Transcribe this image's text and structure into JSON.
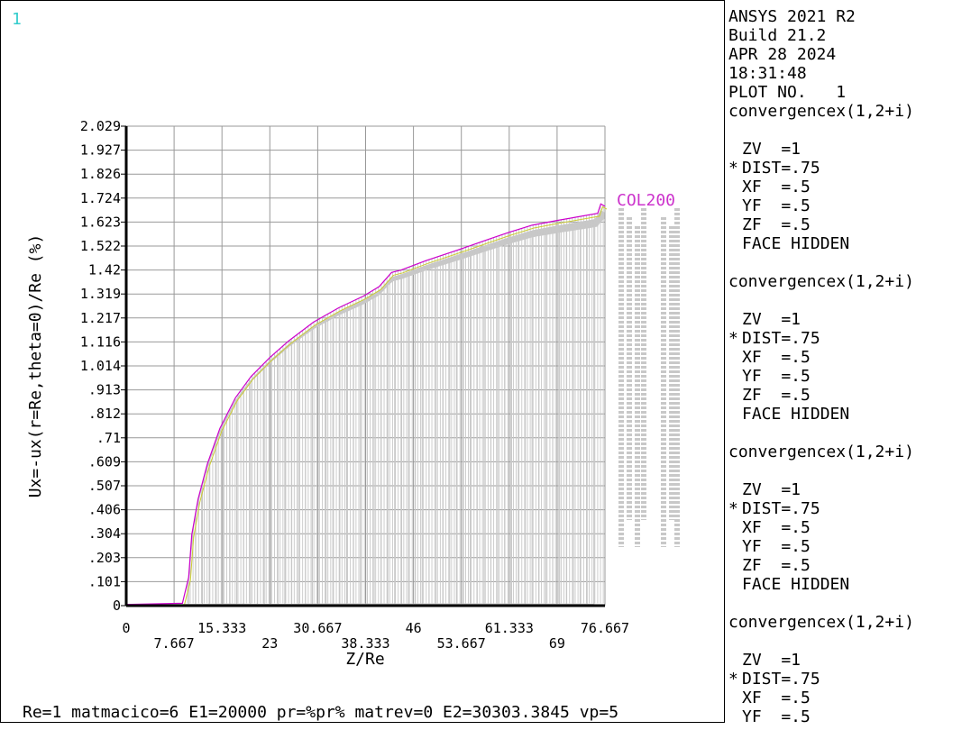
{
  "window_number": "1",
  "footer": "Re=1 matmacico=6 E1=20000 pr=%pr% matrev=0 E2=30303.3845 vp=5",
  "legend": {
    "header": [
      "ANSYS 2021 R2",
      "Build 21.2",
      "APR 28 2024",
      "18:31:48",
      "PLOT NO.   1"
    ],
    "blocks": [
      {
        "title": "convergencex(1,2+i)",
        "lines": [
          {
            "p": " ",
            "t": "ZV  =1"
          },
          {
            "p": "*",
            "t": "DIST=.75"
          },
          {
            "p": " ",
            "t": "XF  =.5"
          },
          {
            "p": " ",
            "t": "YF  =.5"
          },
          {
            "p": " ",
            "t": "ZF  =.5"
          },
          {
            "p": " ",
            "t": "FACE HIDDEN"
          }
        ]
      },
      {
        "title": "convergencex(1,2+i)",
        "lines": [
          {
            "p": " ",
            "t": "ZV  =1"
          },
          {
            "p": "*",
            "t": "DIST=.75"
          },
          {
            "p": " ",
            "t": "XF  =.5"
          },
          {
            "p": " ",
            "t": "YF  =.5"
          },
          {
            "p": " ",
            "t": "ZF  =.5"
          },
          {
            "p": " ",
            "t": "FACE HIDDEN"
          }
        ]
      },
      {
        "title": "convergencex(1,2+i)",
        "lines": [
          {
            "p": " ",
            "t": "ZV  =1"
          },
          {
            "p": "*",
            "t": "DIST=.75"
          },
          {
            "p": " ",
            "t": "XF  =.5"
          },
          {
            "p": " ",
            "t": "YF  =.5"
          },
          {
            "p": " ",
            "t": "ZF  =.5"
          },
          {
            "p": " ",
            "t": "FACE HIDDEN"
          }
        ]
      },
      {
        "title": "convergencex(1,2+i)",
        "lines": [
          {
            "p": " ",
            "t": "ZV  =1"
          },
          {
            "p": "*",
            "t": "DIST=.75"
          },
          {
            "p": " ",
            "t": "XF  =.5"
          },
          {
            "p": " ",
            "t": "YF  =.5"
          }
        ]
      }
    ]
  },
  "chart_data": {
    "type": "line",
    "title": "",
    "xlabel": "Z/Re",
    "ylabel": "Ux=-ux(r=Re,theta=0)/Re (%)",
    "xlim": [
      0,
      76.667
    ],
    "ylim": [
      0,
      2.029
    ],
    "grid": true,
    "x_ticks_row1": [
      "0",
      "15.333",
      "30.667",
      "46",
      "61.333",
      "76.667"
    ],
    "x_ticks_row2": [
      "7.667",
      "23",
      "38.333",
      "53.667",
      "69"
    ],
    "y_ticks": [
      "0",
      ".101",
      ".203",
      ".304",
      ".406",
      ".507",
      ".609",
      ".71",
      ".812",
      ".913",
      "1.014",
      "1.116",
      "1.217",
      "1.319",
      "1.42",
      "1.522",
      "1.623",
      "1.724",
      "1.826",
      "1.927",
      "2.029"
    ],
    "series_label": "COL200",
    "series_count": 200,
    "colors": {
      "envelope": "#cc00cc",
      "secondary": "#cccc33",
      "fill": "#c8c8c8",
      "grid": "#999999",
      "label": "#cc33cc"
    },
    "envelope": [
      {
        "x": 0,
        "y": 0.005
      },
      {
        "x": 9,
        "y": 0.01
      },
      {
        "x": 10,
        "y": 0.12
      },
      {
        "x": 10.5,
        "y": 0.3
      },
      {
        "x": 11.5,
        "y": 0.45
      },
      {
        "x": 13,
        "y": 0.6
      },
      {
        "x": 15,
        "y": 0.75
      },
      {
        "x": 17.5,
        "y": 0.88
      },
      {
        "x": 20,
        "y": 0.97
      },
      {
        "x": 23,
        "y": 1.05
      },
      {
        "x": 26,
        "y": 1.12
      },
      {
        "x": 30,
        "y": 1.2
      },
      {
        "x": 34,
        "y": 1.26
      },
      {
        "x": 38,
        "y": 1.31
      },
      {
        "x": 40.5,
        "y": 1.35
      },
      {
        "x": 42.5,
        "y": 1.41
      },
      {
        "x": 44,
        "y": 1.42
      },
      {
        "x": 48,
        "y": 1.46
      },
      {
        "x": 53.667,
        "y": 1.51
      },
      {
        "x": 58,
        "y": 1.55
      },
      {
        "x": 61.333,
        "y": 1.58
      },
      {
        "x": 65,
        "y": 1.61
      },
      {
        "x": 69,
        "y": 1.63
      },
      {
        "x": 75.5,
        "y": 1.66
      },
      {
        "x": 76,
        "y": 1.7
      },
      {
        "x": 76.667,
        "y": 1.69
      }
    ]
  }
}
